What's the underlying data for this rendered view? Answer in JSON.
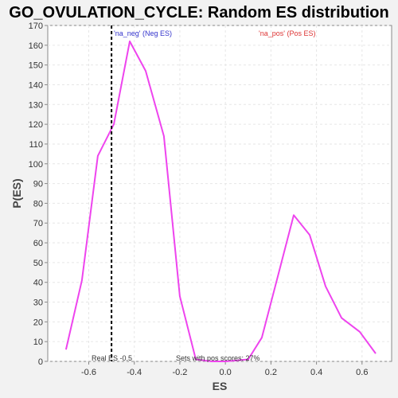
{
  "chart_data": {
    "type": "line",
    "title": "GO_OVULATION_CYCLE: Random ES distribution",
    "xlabel": "ES",
    "ylabel": "P(ES)",
    "xlim": [
      -0.78,
      0.73
    ],
    "ylim": [
      0,
      170
    ],
    "x_ticks": [
      -0.6,
      -0.4,
      -0.2,
      0.0,
      0.2,
      0.4,
      0.6
    ],
    "x_tick_labels": [
      "-0.6",
      "-0.4",
      "-0.2",
      "0.0",
      "0.2",
      "0.4",
      "0.6"
    ],
    "y_ticks": [
      0,
      10,
      20,
      30,
      40,
      50,
      60,
      70,
      80,
      90,
      100,
      110,
      120,
      130,
      140,
      150,
      160,
      170
    ],
    "y_tick_labels": [
      "0",
      "10",
      "20",
      "30",
      "40",
      "50",
      "60",
      "70",
      "80",
      "90",
      "100",
      "110",
      "120",
      "130",
      "140",
      "150",
      "160",
      "170"
    ],
    "grid": true,
    "series": [
      {
        "color": "#ee44ee",
        "x": [
          -0.7,
          -0.63,
          -0.56,
          -0.49,
          -0.42,
          -0.35,
          -0.27,
          -0.2,
          -0.13,
          -0.06,
          0.0,
          0.1,
          0.16,
          0.23,
          0.3,
          0.37,
          0.44,
          0.51,
          0.59,
          0.66
        ],
        "y": [
          6,
          41,
          104,
          120,
          162,
          147,
          114,
          33,
          1,
          0,
          0,
          1,
          12,
          43,
          74,
          64,
          38,
          22,
          15,
          4
        ]
      }
    ],
    "real_es": {
      "x": -0.5,
      "label": "Real ES -0.5",
      "color": "#000000"
    },
    "annotations": {
      "neg_label": "'na_neg' (Neg ES)",
      "neg_color": "#3333cc",
      "pos_label": "'na_pos' (Pos ES)",
      "pos_color": "#dd3333",
      "pos_scores_label": "Sets with pos scores: 27%"
    }
  }
}
